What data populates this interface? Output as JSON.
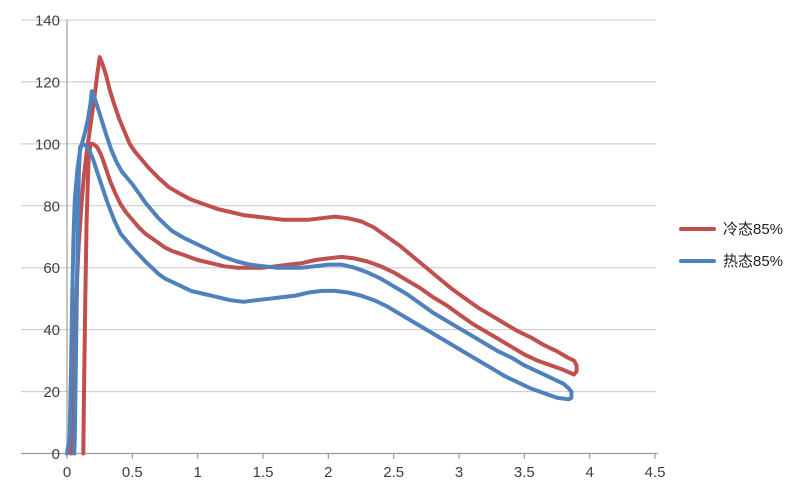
{
  "styles": {
    "background": "#FFFFFF",
    "grid_color": "#C8C8C8",
    "axis_color": "#9C9C9C",
    "tick_label_color": "#3F3F3F",
    "legend_text_color": "#1F1F1F"
  },
  "chart_data": {
    "type": "line",
    "title": "",
    "xlabel": "",
    "ylabel": "",
    "xlim": [
      0,
      4.5
    ],
    "ylim": [
      0,
      140
    ],
    "grid": "horizontal-only",
    "legend_position": "right-middle",
    "xticks": [
      0,
      0.5,
      1,
      1.5,
      2,
      2.5,
      3,
      3.5,
      4,
      4.5
    ],
    "xtick_labels": [
      "0",
      "0.5",
      "1",
      "1.5",
      "2",
      "2.5",
      "3",
      "3.5",
      "4",
      "4.5"
    ],
    "yticks": [
      0,
      20,
      40,
      60,
      80,
      100,
      120,
      140
    ],
    "ytick_labels": [
      "0",
      "20",
      "40",
      "60",
      "80",
      "100",
      "120",
      "140"
    ],
    "series": [
      {
        "name": "冷态85%",
        "color": "#C0504D",
        "points": [
          [
            0.03,
            0
          ],
          [
            0.05,
            10
          ],
          [
            0.06,
            30
          ],
          [
            0.07,
            50
          ],
          [
            0.09,
            68
          ],
          [
            0.11,
            80
          ],
          [
            0.13,
            90
          ],
          [
            0.15,
            97
          ],
          [
            0.17,
            103
          ],
          [
            0.19,
            109
          ],
          [
            0.21,
            115
          ],
          [
            0.23,
            122
          ],
          [
            0.25,
            128
          ],
          [
            0.27,
            126
          ],
          [
            0.3,
            122
          ],
          [
            0.33,
            117
          ],
          [
            0.36,
            113
          ],
          [
            0.4,
            108
          ],
          [
            0.44,
            104
          ],
          [
            0.48,
            100
          ],
          [
            0.52,
            97.5
          ],
          [
            0.57,
            95
          ],
          [
            0.62,
            92.5
          ],
          [
            0.7,
            89
          ],
          [
            0.78,
            86
          ],
          [
            0.86,
            84
          ],
          [
            0.95,
            82
          ],
          [
            1.05,
            80.5
          ],
          [
            1.15,
            79
          ],
          [
            1.25,
            78
          ],
          [
            1.35,
            77
          ],
          [
            1.45,
            76.5
          ],
          [
            1.55,
            76
          ],
          [
            1.65,
            75.5
          ],
          [
            1.75,
            75.5
          ],
          [
            1.85,
            75.5
          ],
          [
            1.95,
            76
          ],
          [
            2.05,
            76.5
          ],
          [
            2.15,
            76
          ],
          [
            2.25,
            75
          ],
          [
            2.35,
            73
          ],
          [
            2.45,
            70
          ],
          [
            2.55,
            67
          ],
          [
            2.65,
            63.5
          ],
          [
            2.75,
            60
          ],
          [
            2.85,
            56.5
          ],
          [
            2.95,
            53
          ],
          [
            3.05,
            50
          ],
          [
            3.15,
            47
          ],
          [
            3.25,
            44.5
          ],
          [
            3.35,
            42
          ],
          [
            3.45,
            39.5
          ],
          [
            3.55,
            37.5
          ],
          [
            3.65,
            35
          ],
          [
            3.75,
            33
          ],
          [
            3.83,
            31
          ],
          [
            3.88,
            30
          ],
          [
            3.9,
            28.5
          ],
          [
            3.9,
            26.5
          ],
          [
            3.88,
            25.5
          ],
          [
            3.8,
            27
          ],
          [
            3.7,
            28.5
          ],
          [
            3.6,
            30
          ],
          [
            3.5,
            32
          ],
          [
            3.4,
            34.5
          ],
          [
            3.3,
            37
          ],
          [
            3.2,
            39.5
          ],
          [
            3.1,
            42
          ],
          [
            3.0,
            45
          ],
          [
            2.9,
            48
          ],
          [
            2.8,
            50.5
          ],
          [
            2.7,
            53.5
          ],
          [
            2.6,
            56
          ],
          [
            2.5,
            58.5
          ],
          [
            2.4,
            60.5
          ],
          [
            2.3,
            62
          ],
          [
            2.2,
            63
          ],
          [
            2.1,
            63.5
          ],
          [
            2.0,
            63
          ],
          [
            1.9,
            62.5
          ],
          [
            1.8,
            61.5
          ],
          [
            1.7,
            61
          ],
          [
            1.6,
            60.5
          ],
          [
            1.5,
            60
          ],
          [
            1.4,
            60
          ],
          [
            1.3,
            60
          ],
          [
            1.2,
            60.5
          ],
          [
            1.1,
            61.5
          ],
          [
            1.0,
            62.5
          ],
          [
            0.9,
            64
          ],
          [
            0.8,
            65.5
          ],
          [
            0.75,
            66.5
          ],
          [
            0.7,
            68
          ],
          [
            0.6,
            71
          ],
          [
            0.55,
            73
          ],
          [
            0.5,
            75.5
          ],
          [
            0.45,
            78
          ],
          [
            0.41,
            80.5
          ],
          [
            0.37,
            84
          ],
          [
            0.33,
            88
          ],
          [
            0.29,
            93
          ],
          [
            0.26,
            96.5
          ],
          [
            0.23,
            99
          ],
          [
            0.2,
            100
          ],
          [
            0.18,
            100
          ],
          [
            0.165,
            95
          ],
          [
            0.15,
            75
          ],
          [
            0.14,
            50
          ],
          [
            0.13,
            20
          ],
          [
            0.125,
            0
          ]
        ]
      },
      {
        "name": "热态85%",
        "color": "#4F81BD",
        "points": [
          [
            0.0,
            0
          ],
          [
            0.02,
            5
          ],
          [
            0.03,
            25
          ],
          [
            0.04,
            50
          ],
          [
            0.05,
            70
          ],
          [
            0.06,
            82
          ],
          [
            0.08,
            92
          ],
          [
            0.1,
            98
          ],
          [
            0.12,
            101
          ],
          [
            0.14,
            104
          ],
          [
            0.16,
            108
          ],
          [
            0.18,
            113
          ],
          [
            0.19,
            117
          ],
          [
            0.21,
            115
          ],
          [
            0.24,
            111
          ],
          [
            0.27,
            107
          ],
          [
            0.3,
            103
          ],
          [
            0.34,
            98
          ],
          [
            0.38,
            94
          ],
          [
            0.42,
            91
          ],
          [
            0.46,
            89
          ],
          [
            0.5,
            87
          ],
          [
            0.55,
            84
          ],
          [
            0.6,
            81
          ],
          [
            0.65,
            78.5
          ],
          [
            0.7,
            76
          ],
          [
            0.75,
            74
          ],
          [
            0.8,
            72
          ],
          [
            0.9,
            69.5
          ],
          [
            1.0,
            67.5
          ],
          [
            1.1,
            65.5
          ],
          [
            1.2,
            63.5
          ],
          [
            1.3,
            62
          ],
          [
            1.4,
            61
          ],
          [
            1.5,
            60.5
          ],
          [
            1.6,
            60
          ],
          [
            1.7,
            60
          ],
          [
            1.8,
            60
          ],
          [
            1.9,
            60.5
          ],
          [
            2.0,
            61
          ],
          [
            2.1,
            61
          ],
          [
            2.2,
            60
          ],
          [
            2.3,
            58.5
          ],
          [
            2.4,
            56.5
          ],
          [
            2.5,
            54
          ],
          [
            2.6,
            51.5
          ],
          [
            2.7,
            48.5
          ],
          [
            2.8,
            45.5
          ],
          [
            2.9,
            43
          ],
          [
            3.0,
            40.5
          ],
          [
            3.1,
            38
          ],
          [
            3.2,
            35.5
          ],
          [
            3.3,
            33
          ],
          [
            3.4,
            31
          ],
          [
            3.5,
            28.5
          ],
          [
            3.6,
            26.5
          ],
          [
            3.7,
            24.5
          ],
          [
            3.8,
            22.5
          ],
          [
            3.84,
            21
          ],
          [
            3.86,
            20
          ],
          [
            3.86,
            18
          ],
          [
            3.84,
            17.5
          ],
          [
            3.75,
            18
          ],
          [
            3.65,
            19.5
          ],
          [
            3.55,
            21
          ],
          [
            3.45,
            23
          ],
          [
            3.35,
            25
          ],
          [
            3.25,
            27.5
          ],
          [
            3.15,
            30
          ],
          [
            3.05,
            32.5
          ],
          [
            2.95,
            35
          ],
          [
            2.85,
            37.5
          ],
          [
            2.75,
            40
          ],
          [
            2.65,
            42.5
          ],
          [
            2.55,
            45
          ],
          [
            2.45,
            47.5
          ],
          [
            2.35,
            49.5
          ],
          [
            2.25,
            51
          ],
          [
            2.15,
            52
          ],
          [
            2.05,
            52.5
          ],
          [
            1.95,
            52.5
          ],
          [
            1.85,
            52
          ],
          [
            1.75,
            51
          ],
          [
            1.65,
            50.5
          ],
          [
            1.55,
            50
          ],
          [
            1.45,
            49.5
          ],
          [
            1.35,
            49
          ],
          [
            1.25,
            49.5
          ],
          [
            1.15,
            50.5
          ],
          [
            1.05,
            51.5
          ],
          [
            0.95,
            52.5
          ],
          [
            0.85,
            54.5
          ],
          [
            0.75,
            56.5
          ],
          [
            0.7,
            58
          ],
          [
            0.6,
            62
          ],
          [
            0.5,
            66.5
          ],
          [
            0.45,
            69
          ],
          [
            0.41,
            71
          ],
          [
            0.36,
            75.5
          ],
          [
            0.31,
            81
          ],
          [
            0.27,
            86
          ],
          [
            0.23,
            91
          ],
          [
            0.2,
            95
          ],
          [
            0.17,
            98
          ],
          [
            0.14,
            99.5
          ],
          [
            0.12,
            100
          ],
          [
            0.1,
            99
          ],
          [
            0.09,
            90
          ],
          [
            0.08,
            65
          ],
          [
            0.07,
            35
          ],
          [
            0.06,
            5
          ],
          [
            0.055,
            0
          ]
        ]
      }
    ]
  }
}
